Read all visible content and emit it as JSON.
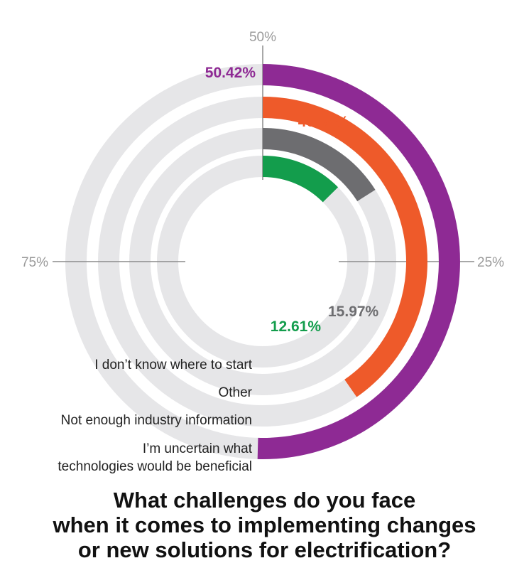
{
  "chart_data": {
    "type": "radial-bar",
    "tick_labels": [
      "50%",
      "25%",
      "75%"
    ],
    "track_color": "#e6e6e8",
    "axis_color": "#8c8c8c",
    "series": [
      {
        "name": "I'm uncertain what technologies would be beneficial",
        "label_lines": [
          "I’m uncertain what",
          "technologies would be beneficial"
        ],
        "value": 50.42,
        "display": "50.42%",
        "color": "#8e2a94"
      },
      {
        "name": "Not enough industry information",
        "label_lines": [
          "Not enough industry information"
        ],
        "value": 40.34,
        "display": "40.34%",
        "color": "#ee5a2a"
      },
      {
        "name": "Other",
        "label_lines": [
          "Other"
        ],
        "value": 15.97,
        "display": "15.97%",
        "color": "#6d6d70"
      },
      {
        "name": "I don't know where to start",
        "label_lines": [
          "I don’t know where to start"
        ],
        "value": 12.61,
        "display": "12.61%",
        "color": "#139d4c"
      }
    ],
    "title_lines": [
      "What challenges do you face",
      "when it comes to implementing changes",
      "or new solutions for electrification?"
    ]
  }
}
